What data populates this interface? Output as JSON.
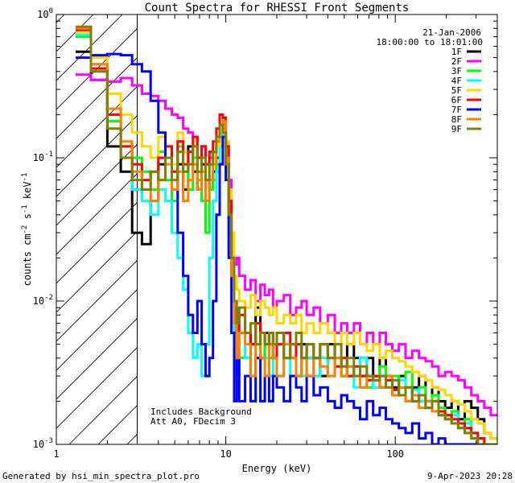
{
  "chart_data": {
    "type": "line",
    "title": "Count Spectra for RHESSI Front Segments",
    "xlabel": "Energy (keV)",
    "ylabel_parts": {
      "base": "counts cm",
      "exp1": "-2",
      "mid1": " s",
      "exp2": "-1",
      "mid2": " keV",
      "exp3": "-1"
    },
    "xscale": "log",
    "yscale": "log",
    "xlim": [
      1,
      400
    ],
    "ylim": [
      0.001,
      1
    ],
    "x_ticks": [
      {
        "value": 1,
        "label": "1"
      },
      {
        "value": 10,
        "label": "10"
      },
      {
        "value": 100,
        "label": "100"
      }
    ],
    "y_ticks": [
      {
        "value": 1,
        "base": "10",
        "exp": "0"
      },
      {
        "value": 0.1,
        "base": "10",
        "exp": "-1"
      },
      {
        "value": 0.01,
        "base": "10",
        "exp": "-2"
      },
      {
        "value": 0.001,
        "base": "10",
        "exp": "-3"
      }
    ],
    "date": "21-Jan-2006",
    "time_range": "18:00:00 to 18:01:00",
    "annotation_1": "Includes Background",
    "annotation_2": "Att A0, FDecim 3",
    "excluded_region": {
      "x_from": 1,
      "x_to": 3
    },
    "footer_left": "Generated by hsi_min_spectra_plot.pro",
    "footer_right": "9-Apr-2023 20:28",
    "energy_bins": [
      1.3,
      1.6,
      2.0,
      2.4,
      2.8,
      3.2,
      3.6,
      4.0,
      4.4,
      4.8,
      5.2,
      5.6,
      6.0,
      6.4,
      6.8,
      7.2,
      7.6,
      8.0,
      8.4,
      8.8,
      9.2,
      9.6,
      10.0,
      10.4,
      10.8,
      11.2,
      11.6,
      12.0,
      13,
      14,
      15,
      16,
      17,
      18,
      19,
      20,
      22,
      24,
      26,
      28,
      30,
      33,
      36,
      40,
      44,
      48,
      52,
      57,
      62,
      68,
      74,
      81,
      88,
      96,
      105,
      115,
      126,
      138,
      151,
      165,
      180,
      197,
      215,
      235,
      257,
      281,
      307,
      335,
      366,
      400
    ],
    "series": [
      {
        "name": "1F",
        "color": "#000000",
        "values": [
          0.55,
          0.35,
          0.12,
          0.08,
          0.03,
          0.025,
          0.05,
          0.09,
          0.1,
          0.06,
          0.09,
          0.06,
          0.12,
          0.08,
          0.06,
          0.09,
          0.07,
          0.06,
          0.08,
          0.1,
          0.12,
          0.18,
          0.1,
          0.05,
          0.02,
          0.009,
          0.006,
          0.006,
          0.006,
          0.005,
          0.009,
          0.004,
          0.006,
          0.005,
          0.004,
          0.006,
          0.004,
          0.005,
          0.003,
          0.005,
          0.004,
          0.004,
          0.003,
          0.005,
          0.004,
          0.003,
          0.005,
          0.004,
          0.003,
          0.004,
          0.003,
          0.004,
          0.003,
          0.0025,
          0.003,
          0.002,
          0.0025,
          0.003,
          0.002,
          0.0025,
          0.002,
          0.0018,
          0.002,
          0.0015,
          0.002,
          0.0018,
          0.0015,
          0.0012,
          0.0011
        ]
      },
      {
        "name": "2F",
        "color": "#ff00ff",
        "values": [
          0.38,
          0.35,
          0.34,
          0.36,
          0.32,
          0.28,
          0.27,
          0.25,
          0.22,
          0.2,
          0.19,
          0.16,
          0.15,
          0.14,
          0.1,
          0.12,
          0.09,
          0.1,
          0.11,
          0.13,
          0.14,
          0.17,
          0.13,
          0.07,
          0.03,
          0.018,
          0.02,
          0.015,
          0.012,
          0.014,
          0.01,
          0.013,
          0.011,
          0.012,
          0.009,
          0.01,
          0.011,
          0.008,
          0.009,
          0.01,
          0.008,
          0.009,
          0.007,
          0.008,
          0.006,
          0.007,
          0.006,
          0.007,
          0.005,
          0.006,
          0.005,
          0.006,
          0.005,
          0.0045,
          0.005,
          0.004,
          0.0045,
          0.004,
          0.0038,
          0.0035,
          0.003,
          0.0032,
          0.003,
          0.0028,
          0.0025,
          0.0022,
          0.002,
          0.0018,
          0.0016
        ]
      },
      {
        "name": "3F",
        "color": "#00ff00",
        "values": [
          0.7,
          0.4,
          0.18,
          0.12,
          0.1,
          0.08,
          0.06,
          0.11,
          0.07,
          0.05,
          0.12,
          0.08,
          0.06,
          0.1,
          0.07,
          0.05,
          0.03,
          0.06,
          0.07,
          0.09,
          0.14,
          0.16,
          0.09,
          0.04,
          0.015,
          0.006,
          0.003,
          0.004,
          0.005,
          0.002,
          0.004,
          0.006,
          0.003,
          0.004,
          0.005,
          0.003,
          0.004,
          0.005,
          0.003,
          0.004,
          0.003,
          0.004,
          0.005,
          0.003,
          0.004,
          0.003,
          0.0035,
          0.003,
          0.004,
          0.0025,
          0.003,
          0.0035,
          0.0028,
          0.003,
          0.0025,
          0.0032,
          0.0022,
          0.0025,
          0.002,
          0.0022,
          0.0018,
          0.0016,
          0.0017,
          0.0014,
          0.0015,
          0.0012,
          0.0011,
          0.001,
          0.001
        ]
      },
      {
        "name": "4F",
        "color": "#00ffff",
        "values": [
          0.72,
          0.45,
          0.2,
          0.1,
          0.06,
          0.05,
          0.04,
          0.06,
          0.05,
          0.03,
          0.02,
          0.012,
          0.006,
          0.004,
          0.005,
          0.003,
          0.005,
          0.02,
          0.05,
          0.08,
          0.12,
          0.15,
          0.08,
          0.03,
          0.012,
          0.005,
          0.003,
          0.006,
          0.004,
          0.003,
          0.005,
          0.002,
          0.004,
          0.003,
          0.005,
          0.003,
          0.004,
          0.003,
          0.005,
          0.003,
          0.004,
          0.003,
          0.004,
          0.003,
          0.004,
          0.0035,
          0.003,
          0.0025,
          0.004,
          0.003,
          0.0025,
          0.003,
          0.0028,
          0.0024,
          0.0028,
          0.002,
          0.0024,
          0.002,
          0.0018,
          0.002,
          0.0016,
          0.0015,
          0.0016,
          0.0013,
          0.0014,
          0.0012,
          0.0011,
          0.001,
          0.001
        ]
      },
      {
        "name": "5F",
        "color": "#ffd700",
        "values": [
          0.75,
          0.5,
          0.28,
          0.2,
          0.15,
          0.12,
          0.1,
          0.14,
          0.12,
          0.09,
          0.15,
          0.11,
          0.09,
          0.13,
          0.1,
          0.08,
          0.07,
          0.09,
          0.1,
          0.12,
          0.15,
          0.19,
          0.13,
          0.06,
          0.03,
          0.015,
          0.012,
          0.01,
          0.009,
          0.011,
          0.008,
          0.01,
          0.009,
          0.008,
          0.009,
          0.007,
          0.008,
          0.007,
          0.008,
          0.006,
          0.007,
          0.006,
          0.007,
          0.006,
          0.005,
          0.006,
          0.005,
          0.006,
          0.005,
          0.0045,
          0.005,
          0.004,
          0.0045,
          0.004,
          0.0038,
          0.0035,
          0.0032,
          0.003,
          0.0028,
          0.0025,
          0.0024,
          0.0022,
          0.002,
          0.0019,
          0.0017,
          0.0015,
          0.0014,
          0.0012,
          0.0011
        ]
      },
      {
        "name": "6F",
        "color": "#ff0000",
        "values": [
          0.78,
          0.42,
          0.2,
          0.12,
          0.09,
          0.07,
          0.08,
          0.1,
          0.12,
          0.08,
          0.13,
          0.09,
          0.11,
          0.14,
          0.1,
          0.12,
          0.09,
          0.11,
          0.13,
          0.16,
          0.2,
          0.19,
          0.12,
          0.05,
          0.02,
          0.008,
          0.006,
          0.008,
          0.006,
          0.005,
          0.007,
          0.006,
          0.005,
          0.006,
          0.004,
          0.005,
          0.006,
          0.004,
          0.005,
          0.004,
          0.005,
          0.004,
          0.005,
          0.004,
          0.0035,
          0.004,
          0.003,
          0.0035,
          0.003,
          0.0028,
          0.003,
          0.0025,
          0.0028,
          0.0024,
          0.0022,
          0.0025,
          0.002,
          0.0022,
          0.0018,
          0.002,
          0.0017,
          0.0016,
          0.0015,
          0.0014,
          0.0013,
          0.0012,
          0.0011,
          0.001,
          0.001
        ]
      },
      {
        "name": "7F",
        "color": "#0000ff",
        "values": [
          0.5,
          0.52,
          0.53,
          0.52,
          0.45,
          0.4,
          0.25,
          0.15,
          0.1,
          0.06,
          0.03,
          0.015,
          0.008,
          0.006,
          0.01,
          0.005,
          0.003,
          0.004,
          0.01,
          0.04,
          0.09,
          0.14,
          0.07,
          0.02,
          0.006,
          0.002,
          0.004,
          0.002,
          0.003,
          0.002,
          0.004,
          0.002,
          0.003,
          0.002,
          0.003,
          0.0025,
          0.002,
          0.003,
          0.0025,
          0.002,
          0.003,
          0.0022,
          0.0025,
          0.002,
          0.0018,
          0.0022,
          0.002,
          0.0018,
          0.0015,
          0.002,
          0.0016,
          0.0018,
          0.0015,
          0.0014,
          0.0013,
          0.0012,
          0.0014,
          0.0011,
          0.0012,
          0.001,
          0.0011,
          0.001,
          0.001,
          0.001,
          0.001,
          0.001,
          0.001,
          0.001,
          0.001
        ]
      },
      {
        "name": "8F",
        "color": "#ff8000",
        "values": [
          0.8,
          0.45,
          0.22,
          0.13,
          0.08,
          0.06,
          0.05,
          0.07,
          0.09,
          0.06,
          0.08,
          0.05,
          0.07,
          0.09,
          0.06,
          0.08,
          0.05,
          0.07,
          0.09,
          0.13,
          0.17,
          0.18,
          0.1,
          0.04,
          0.015,
          0.007,
          0.004,
          0.006,
          0.005,
          0.003,
          0.005,
          0.004,
          0.003,
          0.005,
          0.004,
          0.003,
          0.005,
          0.004,
          0.003,
          0.004,
          0.003,
          0.004,
          0.0035,
          0.003,
          0.004,
          0.003,
          0.0035,
          0.003,
          0.0025,
          0.003,
          0.0028,
          0.0025,
          0.003,
          0.0022,
          0.0025,
          0.002,
          0.0022,
          0.0018,
          0.002,
          0.0017,
          0.0016,
          0.0015,
          0.0014,
          0.0013,
          0.0012,
          0.0011,
          0.001,
          0.001,
          0.001
        ]
      },
      {
        "name": "9F",
        "color": "#808000",
        "values": [
          0.82,
          0.4,
          0.16,
          0.1,
          0.07,
          0.06,
          0.08,
          0.07,
          0.1,
          0.07,
          0.11,
          0.08,
          0.09,
          0.12,
          0.08,
          0.1,
          0.07,
          0.09,
          0.11,
          0.14,
          0.17,
          0.15,
          0.09,
          0.04,
          0.02,
          0.01,
          0.007,
          0.009,
          0.006,
          0.007,
          0.005,
          0.006,
          0.005,
          0.006,
          0.005,
          0.006,
          0.004,
          0.005,
          0.006,
          0.004,
          0.005,
          0.004,
          0.005,
          0.004,
          0.005,
          0.0035,
          0.004,
          0.003,
          0.0035,
          0.003,
          0.0028,
          0.003,
          0.0025,
          0.0028,
          0.0022,
          0.0025,
          0.002,
          0.0022,
          0.0018,
          0.002,
          0.0016,
          0.0015,
          0.0014,
          0.0013,
          0.0012,
          0.0011,
          0.001,
          0.001,
          0.001
        ]
      }
    ]
  }
}
